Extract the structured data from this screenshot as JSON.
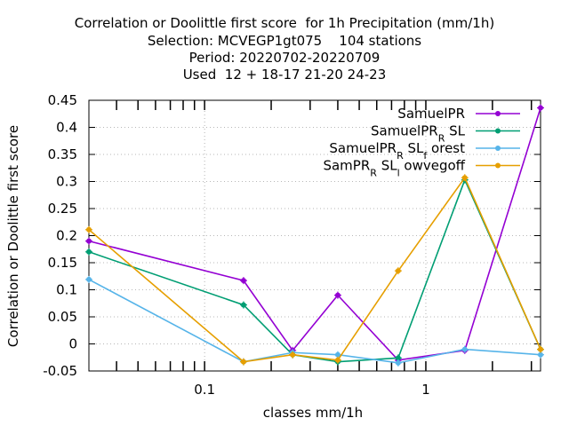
{
  "chart_data": {
    "type": "line",
    "title_lines": [
      "Correlation or Doolittle first score  for 1h Precipitation (mm/1h)",
      "Selection: MCVEGP1gt075    104 stations",
      "Period: 20220702-20220709",
      "Used  12 + 18-17 21-20 24-23"
    ],
    "xlabel": "classes mm/1h",
    "ylabel": "Correlation or Doolittle first score",
    "x_scale": "log",
    "xlim": [
      0.03,
      3.3
    ],
    "ylim": [
      -0.05,
      0.45
    ],
    "x_ticks": [
      {
        "value": 0.1,
        "label": "0.1"
      },
      {
        "value": 1,
        "label": "1"
      }
    ],
    "y_ticks": [
      {
        "value": -0.05,
        "label": "-0.05"
      },
      {
        "value": 0,
        "label": "0"
      },
      {
        "value": 0.05,
        "label": "0.05"
      },
      {
        "value": 0.1,
        "label": "0.1"
      },
      {
        "value": 0.15,
        "label": "0.15"
      },
      {
        "value": 0.2,
        "label": "0.2"
      },
      {
        "value": 0.25,
        "label": "0.25"
      },
      {
        "value": 0.3,
        "label": "0.3"
      },
      {
        "value": 0.35,
        "label": "0.35"
      },
      {
        "value": 0.4,
        "label": "0.4"
      },
      {
        "value": 0.45,
        "label": "0.45"
      }
    ],
    "grid": true,
    "legend_position": "top-right",
    "series": [
      {
        "name": "SamuelPR",
        "color": "#9400d3",
        "points": [
          [
            0.03,
            0.19
          ],
          [
            0.15,
            0.117
          ],
          [
            0.25,
            -0.012
          ],
          [
            0.4,
            0.09
          ],
          [
            0.75,
            -0.03
          ],
          [
            1.5,
            -0.012
          ],
          [
            3.3,
            0.436
          ]
        ]
      },
      {
        "name": "SamuelPR_R SL",
        "color": "#009e73",
        "points": [
          [
            0.03,
            0.17
          ],
          [
            0.15,
            0.072
          ],
          [
            0.25,
            -0.02
          ],
          [
            0.4,
            -0.033
          ],
          [
            0.75,
            -0.026
          ],
          [
            1.5,
            0.303
          ],
          [
            3.3,
            -0.01
          ]
        ]
      },
      {
        "name": "SamuelPR_R SL_f orest",
        "color": "#56b4e9",
        "points": [
          [
            0.03,
            0.119
          ],
          [
            0.15,
            -0.033
          ],
          [
            0.25,
            -0.016
          ],
          [
            0.4,
            -0.02
          ],
          [
            0.75,
            -0.035
          ],
          [
            1.5,
            -0.01
          ],
          [
            3.3,
            -0.02
          ]
        ]
      },
      {
        "name": "SamPR_R SL_l owvegoff",
        "color": "#e69f00",
        "points": [
          [
            0.03,
            0.211
          ],
          [
            0.15,
            -0.033
          ],
          [
            0.25,
            -0.02
          ],
          [
            0.4,
            -0.03
          ],
          [
            0.75,
            0.135
          ],
          [
            1.5,
            0.307
          ],
          [
            3.3,
            -0.01
          ]
        ]
      }
    ]
  }
}
